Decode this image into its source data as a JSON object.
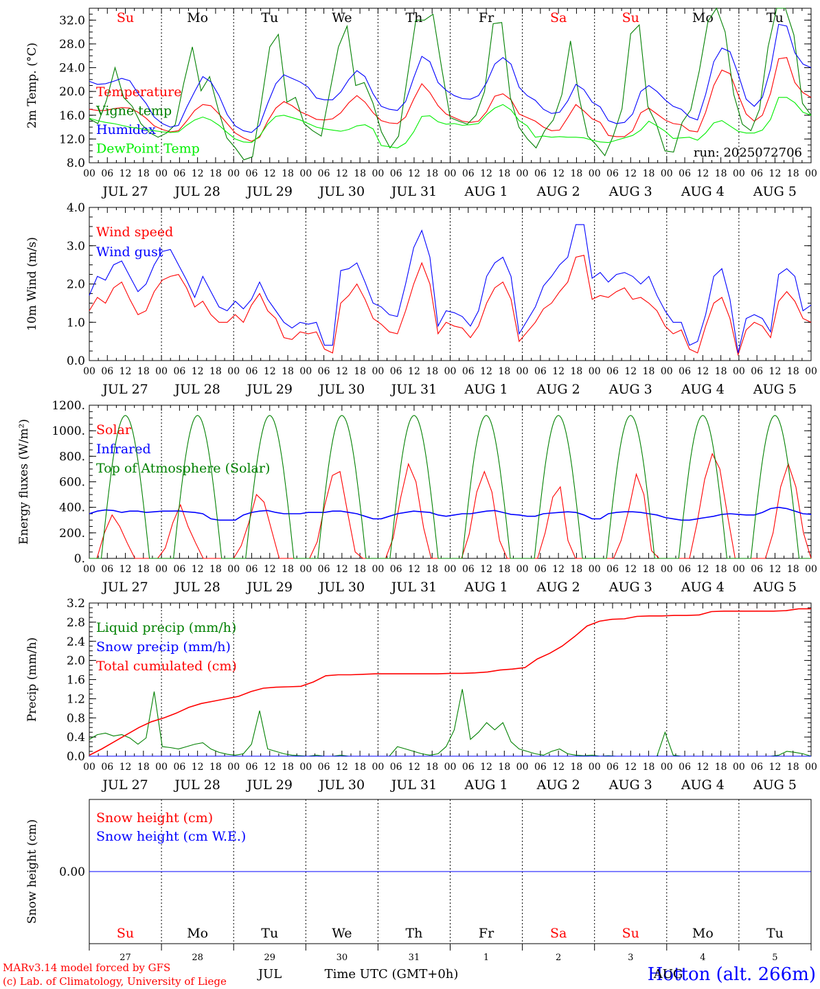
{
  "days": [
    "Su",
    "Mo",
    "Tu",
    "We",
    "Th",
    "Fr",
    "Sa",
    "Su",
    "Mo",
    "Tu"
  ],
  "weekend_days": [
    0,
    6,
    7
  ],
  "hour_labels": [
    "00",
    "06",
    "12",
    "18"
  ],
  "date_labels": [
    "JUL 27",
    "JUL 28",
    "JUL 29",
    "JUL 30",
    "JUL 31",
    "AUG  1",
    "AUG  2",
    "AUG  3",
    "AUG  4",
    "AUG  5"
  ],
  "day_numbers": [
    "27",
    "28",
    "29",
    "30",
    "31",
    "1",
    "2",
    "3",
    "4",
    "5"
  ],
  "month_labels": [
    "JUL",
    "AUG"
  ],
  "x_title": "Time UTC (GMT+0h)",
  "footer": {
    "credit1": "MARv3.14 model forced by GFS",
    "credit2": "(c) Lab. of Climatology, University of Liege",
    "station": "Hotton (alt. 266m)"
  },
  "colors": {
    "red": "#ff0000",
    "green": "#008000",
    "blue": "#0000ff",
    "lightgreen": "#00ee00",
    "black": "#000000"
  },
  "chart_data": [
    {
      "type": "line",
      "ylabel": "2m Temp. (°C)",
      "ylim": [
        8,
        34
      ],
      "yticks": [
        8,
        12,
        16,
        20,
        24,
        28,
        32
      ],
      "ytick_labels": [
        "8.0",
        "12.0",
        "16.0",
        "20.0",
        "24.0",
        "28.0",
        "32.0"
      ],
      "annotation": "run: 2025072706",
      "x_step_hours": 3,
      "series": [
        {
          "name": "Temperature",
          "color": "red",
          "values": [
            17,
            16.8,
            16.8,
            17.1,
            17.3,
            17.2,
            16.5,
            15.5,
            14.2,
            13.6,
            13.2,
            13.4,
            15,
            16.8,
            17.8,
            17.6,
            16.2,
            14.6,
            13,
            12.2,
            11.6,
            12.3,
            15,
            17.2,
            18.3,
            17.6,
            16.6,
            16,
            15.3,
            15.2,
            15.4,
            16.4,
            18.1,
            19.3,
            18.2,
            16.4,
            15.1,
            14.7,
            14.6,
            15.7,
            18.7,
            21.3,
            19.8,
            17.6,
            16.2,
            15.6,
            15,
            14.8,
            15,
            16.6,
            19.2,
            19.6,
            18.6,
            16.2,
            15.6,
            15,
            14,
            13.4,
            13.5,
            15.6,
            17.8,
            16.7,
            15.4,
            14.8,
            12.6,
            12.4,
            12.4,
            13.4,
            16.4,
            17.2,
            16.2,
            15.2,
            14.6,
            14.4,
            13.4,
            13.2,
            16.5,
            21,
            23.6,
            23,
            19.5,
            16.2,
            15,
            16,
            19.7,
            25.5,
            25.7,
            21.5,
            19.8,
            19
          ]
        },
        {
          "name": "Vigne temp",
          "color": "green",
          "values": [
            15.4,
            14.6,
            18.5,
            24,
            19,
            17.5,
            14.6,
            13.1,
            12.3,
            13,
            14.4,
            21.4,
            27.5,
            20.1,
            22.5,
            17,
            12.2,
            10.5,
            8.5,
            9,
            17.9,
            27.5,
            29.6,
            18.2,
            19,
            14.6,
            13.4,
            12.5,
            20,
            27.5,
            31,
            21,
            21.5,
            18.1,
            13.2,
            10.5,
            12.5,
            22.2,
            32,
            32,
            33,
            24,
            15.6,
            15,
            14.5,
            16,
            20,
            31.4,
            31.6,
            19,
            14,
            12,
            10.5,
            13.4,
            15.2,
            19.5,
            28.5,
            19,
            12.5,
            11,
            9.2,
            12.6,
            17.1,
            29.7,
            31.2,
            17.5,
            14.5,
            10,
            9.8,
            14.8,
            16.9,
            23.5,
            31.8,
            35,
            30,
            19.5,
            14.5,
            13.4,
            17,
            27.5,
            34,
            34.5,
            29.5,
            18,
            16
          ]
        },
        {
          "name": "Humidex",
          "color": "blue",
          "values": [
            21.7,
            21.2,
            21.3,
            21.7,
            22.2,
            21.8,
            19.7,
            18,
            15.7,
            14.6,
            14,
            14.3,
            17.3,
            20,
            22.5,
            21.6,
            19.3,
            16.1,
            14.2,
            13.4,
            13.1,
            14.3,
            18,
            21.3,
            22.8,
            22.2,
            21.6,
            20.7,
            18.9,
            18.6,
            18.6,
            19.9,
            22,
            23.5,
            22.5,
            19.6,
            17.5,
            17,
            16.8,
            18.3,
            22.3,
            25.9,
            25,
            21.5,
            20.2,
            19.3,
            18.8,
            18.7,
            19.3,
            21.5,
            24.6,
            25.7,
            24.6,
            20.7,
            19.3,
            18.5,
            17,
            16.3,
            16.5,
            18.4,
            21.2,
            20.3,
            18.2,
            17.4,
            15.1,
            14.6,
            14.8,
            16.2,
            20,
            21,
            20,
            18.6,
            17.5,
            17,
            15.7,
            15.2,
            19.5,
            25,
            27.3,
            26.7,
            23,
            18.7,
            17.5,
            19,
            23.8,
            31.3,
            31,
            26.5,
            24.6,
            24
          ]
        },
        {
          "name": "DewPoint Temp",
          "color": "lightgreen",
          "values": [
            15.5,
            15.1,
            14.8,
            14.6,
            14.3,
            14,
            13.8,
            13.6,
            13.4,
            13.2,
            13.1,
            13.2,
            14.3,
            15.2,
            15.7,
            15.2,
            14.3,
            13.1,
            12,
            11.5,
            11.4,
            12.5,
            14.5,
            15.8,
            16,
            15.6,
            15.2,
            14.6,
            14,
            13.7,
            13.5,
            13.3,
            13.6,
            14.2,
            14.4,
            13.7,
            10.9,
            10.7,
            10.5,
            11.3,
            13.2,
            15.8,
            15.9,
            14.9,
            14.5,
            14.6,
            14.3,
            14.4,
            14.6,
            16.1,
            17.2,
            17.8,
            16.9,
            15.1,
            14.2,
            12.3,
            12.5,
            12.3,
            12.4,
            12.3,
            12.3,
            12.2,
            11.8,
            11.5,
            11.4,
            11.8,
            12.2,
            12.6,
            13.5,
            15,
            14.2,
            13.3,
            12.1,
            12.2,
            12.3,
            11.8,
            13,
            14.7,
            15.1,
            14.2,
            13.3,
            13,
            13,
            13.5,
            15.3,
            19,
            19,
            18.1,
            16.5,
            16
          ]
        }
      ]
    },
    {
      "type": "line",
      "ylabel": "10m Wind (m/s)",
      "ylim": [
        0,
        4
      ],
      "yticks": [
        0,
        1,
        2,
        3,
        4
      ],
      "ytick_labels": [
        "0.0",
        "1.0",
        "2.0",
        "3.0",
        "4.0"
      ],
      "x_step_hours": 3,
      "series": [
        {
          "name": "Wind speed",
          "color": "red",
          "values": [
            1.3,
            1.65,
            1.5,
            1.9,
            2.05,
            1.6,
            1.2,
            1.3,
            1.8,
            2.1,
            2.2,
            2.25,
            1.9,
            1.4,
            1.55,
            1.2,
            1.0,
            1.0,
            1.2,
            1.0,
            1.45,
            1.75,
            1.3,
            1.1,
            0.6,
            0.55,
            0.75,
            0.7,
            0.75,
            0.3,
            0.2,
            1.5,
            1.7,
            2.0,
            1.6,
            1.1,
            0.95,
            0.75,
            0.7,
            1.3,
            2.0,
            2.55,
            2.0,
            0.7,
            1.0,
            0.9,
            0.85,
            0.6,
            0.9,
            1.5,
            1.9,
            2.05,
            1.6,
            0.5,
            0.75,
            1.0,
            1.35,
            1.5,
            1.8,
            2.05,
            2.7,
            2.75,
            1.6,
            1.7,
            1.65,
            1.8,
            1.9,
            1.6,
            1.65,
            1.5,
            1.3,
            0.9,
            0.7,
            0.8,
            0.3,
            0.2,
            0.9,
            1.5,
            1.65,
            1.1,
            0.15,
            0.8,
            1.0,
            0.9,
            0.6,
            1.55,
            1.8,
            1.55,
            1.1,
            1.0
          ]
        },
        {
          "name": "Wind gust",
          "color": "blue",
          "values": [
            1.7,
            2.2,
            2.1,
            2.5,
            2.6,
            2.2,
            1.8,
            2.0,
            2.5,
            2.85,
            2.9,
            2.5,
            2.1,
            1.65,
            2.2,
            1.8,
            1.4,
            1.3,
            1.55,
            1.35,
            1.6,
            2.05,
            1.6,
            1.3,
            1.0,
            0.85,
            1.0,
            0.95,
            1.0,
            0.4,
            0.4,
            2.35,
            2.4,
            2.55,
            2.05,
            1.5,
            1.4,
            1.2,
            1.15,
            2.0,
            2.95,
            3.4,
            2.7,
            0.9,
            1.3,
            1.25,
            1.15,
            0.9,
            1.3,
            2.2,
            2.55,
            2.7,
            2.2,
            0.7,
            1.05,
            1.4,
            1.95,
            2.2,
            2.5,
            2.7,
            3.55,
            3.55,
            2.15,
            2.3,
            2.05,
            2.25,
            2.3,
            2.2,
            2.0,
            2.2,
            1.7,
            1.3,
            1.0,
            1.0,
            0.4,
            0.5,
            1.2,
            2.2,
            2.4,
            1.6,
            0.2,
            1.1,
            1.2,
            1.1,
            0.75,
            2.25,
            2.4,
            2.2,
            1.3,
            1.45
          ]
        }
      ]
    },
    {
      "type": "line",
      "ylabel": "Energy fluxes (W/m²)",
      "ylim": [
        0,
        1200
      ],
      "yticks": [
        0,
        200,
        400,
        600,
        800,
        1000,
        1200
      ],
      "ytick_labels": [
        "0.",
        "200.",
        "400.",
        "600.",
        "800.",
        "1000.",
        "1200."
      ],
      "x_step_hours": 3,
      "series": [
        {
          "name": "Solar",
          "color": "red",
          "values": [
            0,
            0,
            200,
            340,
            250,
            120,
            0,
            0,
            0,
            0,
            80,
            280,
            420,
            250,
            120,
            0,
            0,
            0,
            0,
            0,
            100,
            280,
            500,
            440,
            220,
            0,
            0,
            0,
            0,
            0,
            130,
            420,
            650,
            680,
            360,
            50,
            0,
            0,
            0,
            0,
            160,
            480,
            740,
            600,
            240,
            0,
            0,
            0,
            0,
            0,
            190,
            520,
            680,
            520,
            140,
            0,
            0,
            0,
            0,
            0,
            200,
            480,
            560,
            140,
            0,
            0,
            0,
            0,
            0,
            0,
            140,
            380,
            660,
            500,
            60,
            0,
            0,
            0,
            0,
            0,
            280,
            620,
            820,
            700,
            340,
            0,
            0,
            0,
            0,
            0,
            200,
            560,
            740,
            560,
            200,
            0
          ]
        },
        {
          "name": "Infrared",
          "color": "blue",
          "values": [
            350,
            370,
            380,
            375,
            360,
            370,
            370,
            360,
            365,
            370,
            370,
            372,
            365,
            360,
            350,
            310,
            300,
            300,
            300,
            340,
            360,
            370,
            375,
            360,
            350,
            350,
            350,
            360,
            360,
            360,
            370,
            370,
            360,
            350,
            330,
            310,
            310,
            330,
            350,
            360,
            370,
            365,
            360,
            340,
            330,
            340,
            350,
            350,
            360,
            370,
            375,
            360,
            345,
            340,
            330,
            330,
            350,
            355,
            360,
            365,
            360,
            340,
            310,
            310,
            350,
            360,
            365,
            365,
            360,
            350,
            340,
            320,
            310,
            300,
            300,
            310,
            320,
            330,
            345,
            350,
            345,
            340,
            340,
            360,
            390,
            400,
            390,
            370,
            350,
            345
          ]
        },
        {
          "name": "Top of Atmosphere (Solar)",
          "color": "green",
          "day_peak": 1120
        }
      ]
    },
    {
      "type": "line",
      "ylabel": "Precip (mm/h)",
      "ylim": [
        0,
        3.2
      ],
      "yticks": [
        0,
        0.4,
        0.8,
        1.2,
        1.6,
        2.0,
        2.4,
        2.8,
        3.2
      ],
      "ytick_labels": [
        "0.0",
        "0.4",
        "0.8",
        "1.2",
        "1.6",
        "2.0",
        "2.4",
        "2.8",
        "3.2"
      ],
      "x_step_hours": 3,
      "series": [
        {
          "name": "Liquid precip (mm/h)",
          "color": "green",
          "values": [
            0.35,
            0.45,
            0.48,
            0.42,
            0.45,
            0.38,
            0.25,
            0.38,
            1.35,
            0.2,
            0.18,
            0.15,
            0.2,
            0.25,
            0.28,
            0.15,
            0.08,
            0.04,
            0.02,
            0.05,
            0.25,
            0.95,
            0.15,
            0.1,
            0.05,
            0.02,
            0.01,
            0,
            0.02,
            0,
            0,
            0.02,
            0,
            0,
            0,
            0,
            0,
            0,
            0.2,
            0.15,
            0.1,
            0.05,
            0.02,
            0.05,
            0.2,
            0.55,
            1.4,
            0.35,
            0.5,
            0.7,
            0.55,
            0.7,
            0.3,
            0.15,
            0.1,
            0.05,
            0.02,
            0.1,
            0.15,
            0.05,
            0.02,
            0.01,
            0.02,
            0,
            0.01,
            0,
            0,
            0,
            0,
            0,
            0,
            0.5,
            0.02,
            0,
            0,
            0,
            0,
            0,
            0,
            0,
            0,
            0,
            0,
            0,
            0,
            0.02,
            0.1,
            0.08,
            0.05,
            0
          ]
        },
        {
          "name": "Snow precip (mm/h)",
          "color": "blue",
          "values": [
            0
          ]
        },
        {
          "name": "Total cumulated (cm)",
          "color": "red",
          "values": [
            0.02,
            0.15,
            0.3,
            0.45,
            0.6,
            0.72,
            0.8,
            0.9,
            1.02,
            1.1,
            1.15,
            1.2,
            1.25,
            1.35,
            1.42,
            1.44,
            1.45,
            1.46,
            1.55,
            1.68,
            1.7,
            1.7,
            1.71,
            1.72,
            1.72,
            1.72,
            1.72,
            1.72,
            1.72,
            1.73,
            1.73,
            1.74,
            1.76,
            1.8,
            1.82,
            1.85,
            2.03,
            2.15,
            2.3,
            2.5,
            2.72,
            2.82,
            2.86,
            2.87,
            2.92,
            2.93,
            2.93,
            2.94,
            2.94,
            2.95,
            3.02,
            3.03,
            3.03,
            3.03,
            3.03,
            3.03,
            3.04,
            3.08,
            3.08
          ]
        }
      ]
    },
    {
      "type": "line",
      "ylabel": "Snow height (cm)",
      "ylim": [
        -1,
        1
      ],
      "yticks": [
        0
      ],
      "ytick_labels": [
        "0.00"
      ],
      "series": [
        {
          "name": "Snow height (cm)",
          "color": "red",
          "values": [
            0,
            0
          ]
        },
        {
          "name": "Snow height (cm W.E.)",
          "color": "blue",
          "values": [
            0,
            0
          ]
        }
      ]
    }
  ]
}
